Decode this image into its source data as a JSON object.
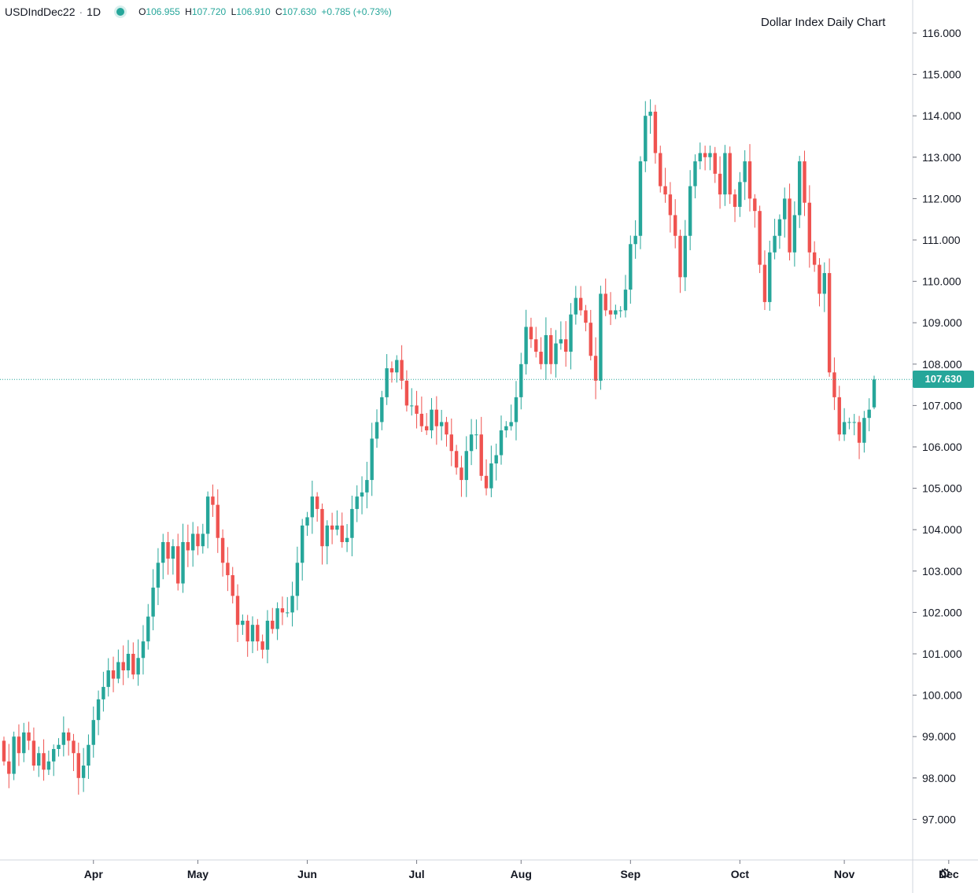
{
  "header": {
    "symbol": "USDIndDec22",
    "sep": "·",
    "interval": "1D",
    "open_label": "O",
    "open": "106.955",
    "high_label": "H",
    "high": "107.720",
    "low_label": "L",
    "low": "106.910",
    "close_label": "C",
    "close": "107.630",
    "change": "+0.785 (+0.73%)"
  },
  "colors": {
    "up": "#26a69a",
    "down": "#ef5350",
    "axis": "#131722",
    "grid": "#e0e3eb"
  },
  "icons": {
    "settings": "gear-icon"
  },
  "chart_data": {
    "type": "candlestick",
    "title": "Dollar Index Daily Chart",
    "ylim": [
      96.0,
      116.8
    ],
    "y_ticks": [
      "97.000",
      "98.000",
      "99.000",
      "100.000",
      "101.000",
      "102.000",
      "103.000",
      "104.000",
      "105.000",
      "106.000",
      "107.000",
      "108.000",
      "109.000",
      "110.000",
      "111.000",
      "112.000",
      "113.000",
      "114.000",
      "115.000",
      "116.000"
    ],
    "x_ticks": [
      {
        "label": "Apr",
        "index": 18
      },
      {
        "label": "May",
        "index": 39
      },
      {
        "label": "Jun",
        "index": 61
      },
      {
        "label": "Jul",
        "index": 83
      },
      {
        "label": "Aug",
        "index": 104
      },
      {
        "label": "Sep",
        "index": 126
      },
      {
        "label": "Oct",
        "index": 148
      },
      {
        "label": "Nov",
        "index": 169
      },
      {
        "label": "Dec",
        "index": 190
      }
    ],
    "last_price": "107.630",
    "last_value": 107.63,
    "closes": [
      98.4,
      98.1,
      99.0,
      98.6,
      99.1,
      98.9,
      98.3,
      98.6,
      98.2,
      98.4,
      98.7,
      98.8,
      99.1,
      98.9,
      98.6,
      98.0,
      98.3,
      98.8,
      99.4,
      99.9,
      100.2,
      100.6,
      100.4,
      100.8,
      100.6,
      101.0,
      100.5,
      100.9,
      101.3,
      101.9,
      102.6,
      103.2,
      103.7,
      103.3,
      103.6,
      102.7,
      103.7,
      103.5,
      103.9,
      103.6,
      103.9,
      104.8,
      104.6,
      103.8,
      103.2,
      102.9,
      102.4,
      101.7,
      101.8,
      101.3,
      101.7,
      101.3,
      101.1,
      101.8,
      101.6,
      102.1,
      102.0,
      102.0,
      102.4,
      103.2,
      104.1,
      104.3,
      104.8,
      104.5,
      103.6,
      104.1,
      104.0,
      104.1,
      103.7,
      103.8,
      104.5,
      104.8,
      104.9,
      105.2,
      106.2,
      106.6,
      107.2,
      107.9,
      107.8,
      108.1,
      107.6,
      107.0,
      107.0,
      106.8,
      106.5,
      106.4,
      106.9,
      106.5,
      106.6,
      106.3,
      105.9,
      105.5,
      105.2,
      105.9,
      106.3,
      106.3,
      105.3,
      105.0,
      105.6,
      105.8,
      106.4,
      106.5,
      106.6,
      107.2,
      108.0,
      108.9,
      108.6,
      108.3,
      108.0,
      108.7,
      108.0,
      108.5,
      108.6,
      108.3,
      109.2,
      109.6,
      109.3,
      109.0,
      108.2,
      107.6,
      109.7,
      109.3,
      109.2,
      109.3,
      109.3,
      109.8,
      110.9,
      111.1,
      112.9,
      114.0,
      114.1,
      113.1,
      112.3,
      112.1,
      111.6,
      111.1,
      110.1,
      111.1,
      112.3,
      112.9,
      113.1,
      113.0,
      113.1,
      112.6,
      112.1,
      113.1,
      112.1,
      111.8,
      112.4,
      112.9,
      112.0,
      111.7,
      110.4,
      109.5,
      110.7,
      111.1,
      111.5,
      112.0,
      110.7,
      111.6,
      112.9,
      111.9,
      110.7,
      110.4,
      109.7,
      110.2,
      107.8,
      107.2,
      106.3,
      106.6,
      106.6,
      106.6,
      106.1,
      106.7,
      106.9,
      107.63
    ],
    "last_bar_open": 106.955,
    "last_bar_high": 107.72,
    "last_bar_low": 106.91
  }
}
